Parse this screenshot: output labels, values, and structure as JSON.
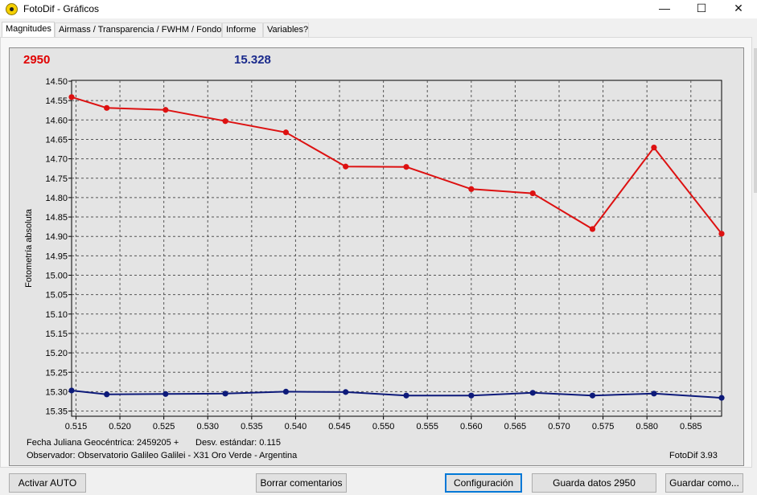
{
  "window": {
    "title": "FotoDif - Gráficos",
    "controls": {
      "minimize": "—",
      "maximize": "☐",
      "close": "✕"
    }
  },
  "tabs": [
    {
      "label": "Magnitudes",
      "active": true
    },
    {
      "label": "Airmass / Transparencia / FWHM / Fondo",
      "active": false
    },
    {
      "label": "Informe",
      "active": false
    },
    {
      "label": "Variables?",
      "active": false
    }
  ],
  "readouts": {
    "left": "2950",
    "right": "15.328",
    "left_color": "#e00000",
    "right_color": "#1a2a8c"
  },
  "chart_data": {
    "type": "line",
    "title": "",
    "xlabel": "",
    "ylabel": "Fotometría absoluta",
    "xlim": [
      0.5145,
      0.5885
    ],
    "ylim": [
      15.36,
      14.5
    ],
    "y_inverted": true,
    "grid": true,
    "x_ticks": [
      "0.515",
      "0.520",
      "0.525",
      "0.530",
      "0.535",
      "0.540",
      "0.545",
      "0.550",
      "0.555",
      "0.560",
      "0.565",
      "0.570",
      "0.575",
      "0.580",
      "0.585"
    ],
    "y_ticks": [
      "14.50",
      "14.55",
      "14.60",
      "14.65",
      "14.70",
      "14.75",
      "14.80",
      "14.85",
      "14.90",
      "14.95",
      "15.00",
      "15.05",
      "15.10",
      "15.15",
      "15.20",
      "15.25",
      "15.30",
      "15.35"
    ],
    "x": [
      0.5145,
      0.5185,
      0.5252,
      0.532,
      0.5389,
      0.5457,
      0.5526,
      0.56,
      0.567,
      0.5738,
      0.5808,
      0.5885
    ],
    "series": [
      {
        "color": "#dd1111",
        "values": [
          14.541,
          14.569,
          14.574,
          14.603,
          14.632,
          14.72,
          14.721,
          14.778,
          14.789,
          14.881,
          14.671,
          14.893
        ]
      },
      {
        "color": "#0d1a7a",
        "values": [
          15.297,
          15.307,
          15.306,
          15.305,
          15.3,
          15.301,
          15.31,
          15.31,
          15.303,
          15.31,
          15.305,
          15.316
        ]
      }
    ]
  },
  "info": {
    "julian_date": "Fecha Juliana Geocéntrica: 2459205 +",
    "std_dev": "Desv. estándar: 0.115",
    "observer": "Observador: Observatorio Galileo Galilei - X31 Oro Verde - Argentina",
    "version": "FotoDif 3.93"
  },
  "buttons": {
    "auto": "Activar AUTO",
    "clear_comments": "Borrar comentarios",
    "config": "Configuración",
    "save_data": "Guarda datos 2950",
    "save_as": "Guardar como..."
  }
}
